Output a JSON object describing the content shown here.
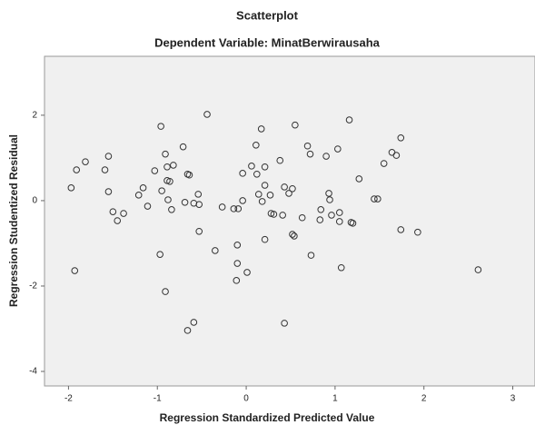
{
  "chart_data": {
    "type": "scatter",
    "title": "Scatterplot",
    "subtitle": "Dependent Variable: MinatBerwirausaha",
    "x_label": "Regression Standardized Predicted Value",
    "y_label": "Regression Studentized Residual",
    "color": "#333333",
    "xlim": [
      -2.27,
      3.25
    ],
    "ylim": [
      -4.34,
      3.38
    ],
    "xticks": [
      -2,
      -1,
      0,
      1,
      2,
      3
    ],
    "yticks": [
      2,
      0,
      -2,
      -4
    ],
    "x": [
      -1.97,
      -1.91,
      -1.81,
      -1.93,
      -1.59,
      -1.55,
      -1.55,
      -1.5,
      -1.45,
      -1.38,
      -1.21,
      -1.16,
      -1.11,
      -1.03,
      -0.96,
      -0.95,
      -0.97,
      -0.91,
      -0.89,
      -0.89,
      -0.86,
      -0.91,
      -0.82,
      -0.88,
      -0.84,
      -0.71,
      -0.69,
      -0.66,
      -0.64,
      -0.59,
      -0.54,
      -0.53,
      -0.59,
      -0.66,
      -0.53,
      -0.44,
      -0.35,
      -0.27,
      -0.14,
      -0.1,
      -0.09,
      -0.1,
      -0.11,
      0.01,
      -0.04,
      -0.04,
      0.06,
      0.12,
      0.11,
      0.17,
      0.14,
      0.18,
      0.21,
      0.21,
      0.27,
      0.28,
      0.31,
      0.21,
      0.38,
      0.43,
      0.41,
      0.48,
      0.52,
      0.52,
      0.54,
      0.43,
      0.55,
      0.63,
      0.69,
      0.72,
      0.73,
      0.83,
      0.84,
      0.9,
      0.93,
      0.94,
      0.96,
      1.03,
      1.05,
      1.05,
      1.07,
      1.16,
      1.18,
      1.2,
      1.27,
      1.44,
      1.48,
      1.55,
      1.64,
      1.69,
      1.74,
      1.74,
      1.93,
      2.61
    ],
    "values": [
      0.3,
      0.72,
      0.91,
      -1.64,
      0.72,
      1.04,
      0.21,
      -0.26,
      -0.47,
      -0.3,
      0.13,
      0.3,
      -0.13,
      0.7,
      1.74,
      0.23,
      -1.26,
      1.09,
      0.79,
      0.47,
      0.45,
      -2.13,
      0.83,
      0.02,
      -0.21,
      1.26,
      -0.04,
      0.62,
      0.6,
      -0.06,
      0.15,
      -0.09,
      -2.85,
      -3.04,
      -0.72,
      2.02,
      -1.17,
      -0.15,
      -0.19,
      -1.04,
      -0.19,
      -1.47,
      -1.87,
      -1.68,
      0.0,
      0.64,
      0.81,
      0.62,
      1.3,
      1.68,
      0.15,
      -0.02,
      0.36,
      0.79,
      0.13,
      -0.3,
      -0.32,
      -0.91,
      0.94,
      0.32,
      -0.34,
      0.17,
      0.28,
      -0.79,
      -0.83,
      -2.87,
      1.77,
      -0.4,
      1.28,
      1.09,
      -1.28,
      -0.45,
      -0.21,
      1.04,
      0.17,
      0.02,
      -0.34,
      1.21,
      -0.28,
      -0.49,
      -1.57,
      1.89,
      -0.51,
      -0.53,
      0.51,
      0.04,
      0.04,
      0.87,
      1.13,
      1.06,
      1.47,
      -0.68,
      -0.74,
      -1.62
    ]
  }
}
